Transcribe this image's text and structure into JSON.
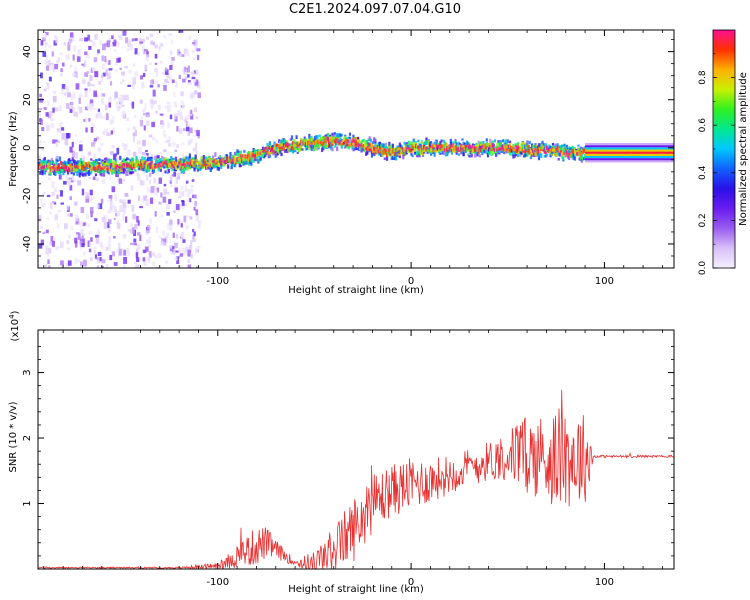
{
  "figure": {
    "title": "C2E1.2024.097.07.04.G10"
  },
  "colors": {
    "snr_line": "#e83030",
    "axis": "#000000",
    "colorbar_stops": [
      "#f4f0ff",
      "#d8c0f8",
      "#9a5cf0",
      "#6a1cf0",
      "#2a10e8",
      "#1060ff",
      "#00c8ff",
      "#00e890",
      "#30f020",
      "#c8f000",
      "#ffb000",
      "#ff3000",
      "#ff1090"
    ]
  },
  "chart_data": [
    {
      "type": "heatmap",
      "name": "spectrogram",
      "title": "C2E1.2024.097.07.04.G10",
      "xlabel": "Height of straight line (km)",
      "ylabel": "Frequency (Hz)",
      "xlim": [
        -193,
        136
      ],
      "ylim": [
        -50,
        49
      ],
      "xticks": [
        -100,
        0,
        100
      ],
      "yticks": [
        -40,
        -20,
        0,
        20,
        40
      ],
      "colorbar": {
        "label": "Normalized spectral amplitude",
        "range": [
          0.0,
          1.0
        ],
        "ticks": [
          "0.0",
          "0.2",
          "0.4",
          "0.6",
          "0.8"
        ]
      },
      "ridge": {
        "x": [
          -193,
          -160,
          -140,
          -120,
          -100,
          -85,
          -70,
          -60,
          -50,
          -40,
          -30,
          -20,
          -10,
          0,
          10,
          20,
          30,
          40,
          50,
          60,
          70,
          80,
          90,
          136
        ],
        "y": [
          -8,
          -8,
          -7,
          -7,
          -6,
          -4,
          0,
          1,
          2,
          3,
          2,
          0,
          -2,
          0,
          0,
          0,
          0,
          0,
          0,
          -1,
          -1,
          -2,
          -2,
          -2
        ]
      },
      "noise_region_x": [
        -193,
        -110
      ]
    },
    {
      "type": "line",
      "name": "snr",
      "xlabel": "Height of straight line (km)",
      "ylabel": "SNR (10 * v/v)",
      "scale_label": "(x10",
      "scale_exponent": "4",
      "scale_suffix": ")",
      "xlim": [
        -193,
        136
      ],
      "ylim": [
        0,
        3.65
      ],
      "xticks": [
        -100,
        0,
        100
      ],
      "yticks": [
        1,
        2,
        3
      ],
      "envelope": {
        "x": [
          -193,
          -120,
          -100,
          -90,
          -80,
          -75,
          -70,
          -60,
          -50,
          -40,
          -30,
          -20,
          -10,
          0,
          10,
          20,
          30,
          40,
          50,
          60,
          70,
          80,
          90,
          95,
          136
        ],
        "mean": [
          0.02,
          0.02,
          0.05,
          0.2,
          0.35,
          0.4,
          0.3,
          0.1,
          0.08,
          0.3,
          0.6,
          1.0,
          1.2,
          1.3,
          1.35,
          1.45,
          1.55,
          1.65,
          1.75,
          1.75,
          1.7,
          1.7,
          1.7,
          1.72,
          1.72
        ],
        "amplitude": [
          0.01,
          0.01,
          0.05,
          0.2,
          0.3,
          0.25,
          0.15,
          0.05,
          0.2,
          0.35,
          0.5,
          0.45,
          0.4,
          0.4,
          0.35,
          0.3,
          0.3,
          0.3,
          0.4,
          0.6,
          0.7,
          0.8,
          0.7,
          0.02,
          0.02
        ]
      }
    }
  ]
}
